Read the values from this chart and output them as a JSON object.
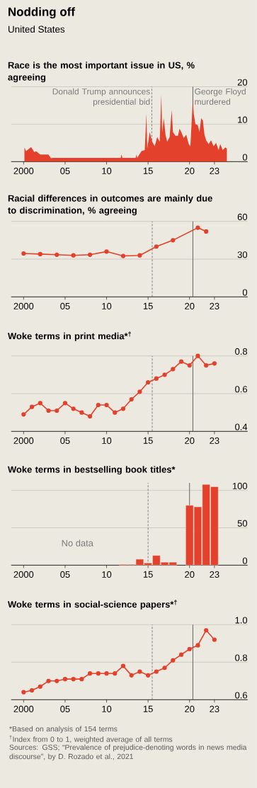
{
  "chart_data": [
    {
      "type": "other",
      "title": "Nodding off",
      "subtitle": "United States"
    },
    {
      "type": "area",
      "title": "Race is the most important issue in US, % agreeing",
      "color": "#e3412b",
      "grid": "y",
      "x": [
        2000.1,
        2000.3,
        2000.9,
        2001.3,
        2001.5,
        2002,
        2003,
        2003.3,
        2003.5,
        2011.7,
        2011.8,
        2011.9,
        2013.5,
        2013.6,
        2013.7,
        2014.2,
        2014.6,
        2014.8,
        2014.9,
        2015.2,
        2015.5,
        2015.8,
        2016.1,
        2016.4,
        2016.6,
        2016.7,
        2016.9,
        2017.1,
        2017.3,
        2017.6,
        2017.85,
        2018,
        2018.3,
        2018.6,
        2018.8,
        2019,
        2019.3,
        2019.6,
        2019.9,
        2020.1,
        2020.4,
        2020.5,
        2020.7,
        2021,
        2021.2,
        2021.4,
        2021.6,
        2021.8,
        2022,
        2022.3,
        2022.6,
        2022.9,
        2023.2,
        2023.5,
        2023.7,
        2024,
        2024.3,
        2024.5
      ],
      "values": [
        3.8,
        2.8,
        3.9,
        2.5,
        2.8,
        1.9,
        1.9,
        0.9,
        1,
        1,
        1.9,
        1,
        1,
        1.9,
        1,
        2.8,
        3.1,
        12.9,
        3.5,
        7.9,
        5.3,
        4.1,
        6.6,
        5.3,
        17.9,
        7.9,
        11.6,
        7.2,
        5.3,
        6.6,
        13.8,
        7.9,
        6.9,
        6.9,
        8.8,
        7.9,
        6.3,
        7.2,
        4.7,
        4.1,
        16.7,
        12.9,
        10.1,
        9.7,
        7.9,
        11.6,
        11,
        7.2,
        5.7,
        4.7,
        5.7,
        4.1,
        5,
        3.1,
        4.7,
        3.1,
        3.8,
        3.5
      ],
      "xlim": [
        1998.5,
        2027
      ],
      "xticks": [
        2000,
        {
          "value": 2005,
          "label": "05"
        },
        {
          "value": 2010,
          "label": "10"
        },
        {
          "value": 2015,
          "label": "15"
        },
        {
          "value": 2020,
          "label": "20"
        },
        {
          "value": 2023,
          "label": "23"
        }
      ],
      "ylim": [
        0,
        20
      ],
      "yticks": [
        0,
        10,
        20
      ],
      "ref_lines": [
        {
          "axis": "x",
          "value": 2015.45,
          "label": "Donald Trump announces presidential bid",
          "line_style": "dashed",
          "color": "#777777"
        },
        {
          "axis": "x",
          "value": 2020.4,
          "label": "George Floyd murdered",
          "line_style": "solid",
          "color": "#555555"
        }
      ]
    },
    {
      "type": "line",
      "title": "Racial differences in outcomes are mainly due to discrimination, % agreeing",
      "color": "#e3412b",
      "grid": "y",
      "marker": "circle",
      "line_style": "solid",
      "x": [
        2000,
        2002,
        2004,
        2006,
        2008,
        2010,
        2012,
        2014,
        2016,
        2018,
        2021,
        2022
      ],
      "values": [
        34.5,
        34,
        33.5,
        33,
        33.5,
        36,
        32.5,
        33,
        40,
        45,
        55,
        52
      ],
      "xlim": [
        1998.5,
        2027
      ],
      "xticks": [
        2000,
        {
          "value": 2005,
          "label": "05"
        },
        {
          "value": 2010,
          "label": "10"
        },
        {
          "value": 2015,
          "label": "15"
        },
        {
          "value": 2020,
          "label": "20"
        },
        {
          "value": 2023,
          "label": "23"
        }
      ],
      "ylim": [
        0,
        60
      ],
      "yticks": [
        0,
        30,
        60
      ],
      "ref_lines": [
        {
          "axis": "x",
          "value": 2015.5,
          "line_style": "dashed",
          "color": "#777777"
        },
        {
          "axis": "x",
          "value": 2020.4,
          "line_style": "solid",
          "color": "#555555"
        }
      ]
    },
    {
      "type": "line",
      "title": "Woke terms in print media*$^{†}$",
      "color": "#e3412b",
      "grid": "y",
      "marker": "circle",
      "line_style": "solid",
      "x": [
        2000,
        2001,
        2002,
        2003,
        2004,
        2005,
        2006,
        2007,
        2008,
        2009,
        2010,
        2011,
        2012,
        2013,
        2014,
        2015,
        2016,
        2017,
        2018,
        2019,
        2020,
        2021,
        2022,
        2023
      ],
      "values": [
        0.49,
        0.53,
        0.55,
        0.51,
        0.51,
        0.55,
        0.52,
        0.5,
        0.48,
        0.54,
        0.54,
        0.5,
        0.52,
        0.57,
        0.61,
        0.66,
        0.68,
        0.7,
        0.73,
        0.77,
        0.75,
        0.8,
        0.75,
        0.76
      ],
      "xlim": [
        1998.5,
        2027
      ],
      "xticks": [
        2000,
        {
          "value": 2005,
          "label": "05"
        },
        {
          "value": 2010,
          "label": "10"
        },
        {
          "value": 2015,
          "label": "15"
        },
        {
          "value": 2020,
          "label": "20"
        },
        {
          "value": 2023,
          "label": "23"
        }
      ],
      "ylim": [
        0.4,
        0.8
      ],
      "yticks": [
        0.4,
        0.6,
        0.8
      ],
      "ref_lines": [
        {
          "axis": "x",
          "value": 2015.5,
          "line_style": "dashed",
          "color": "#777777"
        },
        {
          "axis": "x",
          "value": 2020.4,
          "line_style": "solid",
          "color": "#555555"
        }
      ]
    },
    {
      "type": "bar",
      "title": "Woke terms in bestselling book titles*",
      "color": "#e3412b",
      "grid": "y",
      "x": [
        2012,
        2013,
        2014,
        2015,
        2016,
        2017,
        2018,
        2019,
        2020,
        2021,
        2022,
        2023
      ],
      "values": [
        1,
        1,
        8,
        3,
        13,
        4,
        4,
        null,
        80,
        78,
        108,
        105
      ],
      "xlim": [
        1998.5,
        2027
      ],
      "xticks": [
        2000,
        {
          "value": 2005,
          "label": "05"
        },
        {
          "value": 2010,
          "label": "10"
        },
        {
          "value": 2015,
          "label": "15"
        },
        {
          "value": 2020,
          "label": "20"
        },
        {
          "value": 2023,
          "label": "23"
        }
      ],
      "ylim": [
        0,
        110
      ],
      "yticks": [
        0,
        50,
        100
      ],
      "annotations": [
        "No data"
      ],
      "ref_lines": [
        {
          "axis": "x",
          "value": 2015,
          "line_style": "dashed",
          "color": "#777777"
        },
        {
          "axis": "x",
          "value": 2020,
          "line_style": "solid",
          "color": "#555555"
        }
      ]
    },
    {
      "type": "line",
      "title": "Woke terms in social-science papers*$^{†}$",
      "color": "#e3412b",
      "grid": "y",
      "marker": "circle",
      "line_style": "solid",
      "x": [
        2000,
        2001,
        2002,
        2003,
        2004,
        2005,
        2006,
        2007,
        2008,
        2009,
        2010,
        2011,
        2012,
        2013,
        2014,
        2015,
        2016,
        2017,
        2018,
        2019,
        2020,
        2021,
        2022,
        2023
      ],
      "values": [
        0.64,
        0.65,
        0.67,
        0.7,
        0.7,
        0.71,
        0.71,
        0.71,
        0.74,
        0.74,
        0.74,
        0.74,
        0.78,
        0.73,
        0.75,
        0.73,
        0.75,
        0.77,
        0.81,
        0.84,
        0.87,
        0.89,
        0.97,
        0.92
      ],
      "xlim": [
        1998.5,
        2027
      ],
      "xticks": [
        2000,
        {
          "value": 2005,
          "label": "05"
        },
        {
          "value": 2010,
          "label": "10"
        },
        {
          "value": 2015,
          "label": "15"
        },
        {
          "value": 2020,
          "label": "20"
        },
        {
          "value": 2023,
          "label": "23"
        }
      ],
      "ylim": [
        0.6,
        1.0
      ],
      "yticks": [
        0.6,
        0.8,
        {
          "value": 1,
          "label": "1.0"
        }
      ],
      "ref_lines": [
        {
          "axis": "x",
          "value": 2015.5,
          "line_style": "dashed",
          "color": "#777777"
        },
        {
          "axis": "x",
          "value": 2020.4,
          "line_style": "solid",
          "color": "#555555"
        }
      ],
      "annotations": [
        "*Based on analysis of 154 terms",
        "$^{†}$Index from 0 to 1, weighted average of all terms",
        "Sources: GSS; “Prevalence of prejudice-denoting words in news media discourse”, by D. Rozado et al., 2021"
      ]
    }
  ]
}
